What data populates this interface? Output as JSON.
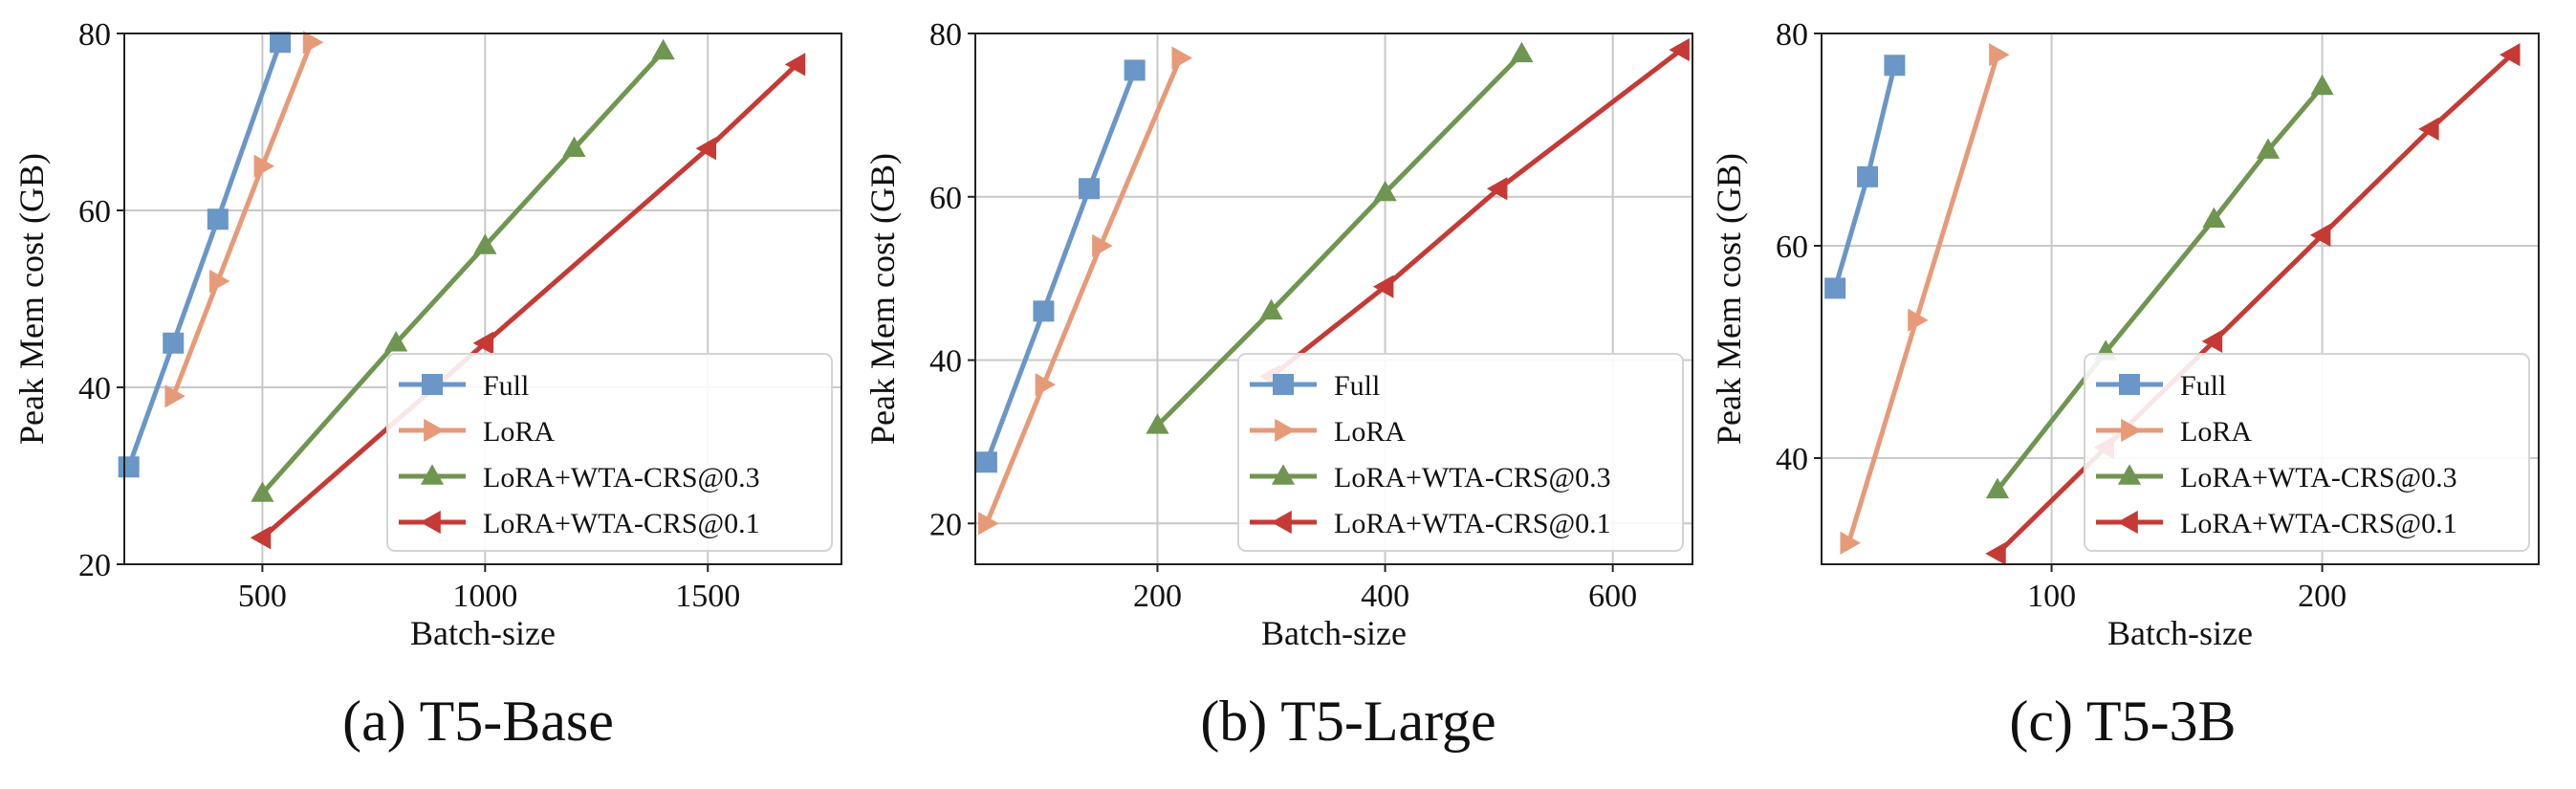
{
  "colors": {
    "full": "#6a96c8",
    "lora": "#e79a78",
    "wta03": "#6f9650",
    "wta01": "#c53a35",
    "grid": "#c8c8c8",
    "axis": "#222222"
  },
  "panels": [
    {
      "caption": "(a) T5-Base"
    },
    {
      "caption": "(b) T5-Large"
    },
    {
      "caption": "(c) T5-3B"
    }
  ],
  "chart_data": [
    {
      "type": "line",
      "title": "(a) T5-Base",
      "xlabel": "Batch-size",
      "ylabel": "Peak Mem cost (GB)",
      "xlim": [
        190,
        1800
      ],
      "ylim": [
        20,
        80
      ],
      "xticks": [
        500,
        1000,
        1500
      ],
      "yticks": [
        20,
        40,
        60,
        80
      ],
      "grid": true,
      "legend_position": "bottom-right",
      "series": [
        {
          "name": "Full",
          "marker": "square",
          "color_key": "full",
          "x": [
            200,
            300,
            400,
            540
          ],
          "y": [
            31,
            45,
            59,
            79
          ]
        },
        {
          "name": "LoRA",
          "marker": "triangle-right",
          "color_key": "lora",
          "x": [
            300,
            400,
            500,
            610
          ],
          "y": [
            39,
            52,
            65,
            79
          ]
        },
        {
          "name": "LoRA+WTA-CRS@0.3",
          "marker": "triangle-up",
          "color_key": "wta03",
          "x": [
            500,
            800,
            1000,
            1200,
            1400
          ],
          "y": [
            28,
            45,
            56,
            67,
            78
          ]
        },
        {
          "name": "LoRA+WTA-CRS@0.1",
          "marker": "triangle-left",
          "color_key": "wta01",
          "x": [
            500,
            1000,
            1500,
            1700
          ],
          "y": [
            23,
            45,
            67,
            76.5
          ]
        }
      ]
    },
    {
      "type": "line",
      "title": "(b) T5-Large",
      "xlabel": "Batch-size",
      "ylabel": "Peak Mem cost (GB)",
      "xlim": [
        40,
        670
      ],
      "ylim": [
        15,
        80
      ],
      "xticks": [
        200,
        400,
        600
      ],
      "yticks": [
        20,
        40,
        60,
        80
      ],
      "grid": true,
      "legend_position": "bottom-right",
      "series": [
        {
          "name": "Full",
          "marker": "square",
          "color_key": "full",
          "x": [
            50,
            100,
            140,
            180
          ],
          "y": [
            27.5,
            46,
            61,
            75.5
          ]
        },
        {
          "name": "LoRA",
          "marker": "triangle-right",
          "color_key": "lora",
          "x": [
            50,
            100,
            150,
            220
          ],
          "y": [
            20,
            37,
            54,
            77
          ]
        },
        {
          "name": "LoRA+WTA-CRS@0.3",
          "marker": "triangle-up",
          "color_key": "wta03",
          "x": [
            200,
            300,
            400,
            520
          ],
          "y": [
            32,
            46,
            60.5,
            77.5
          ]
        },
        {
          "name": "LoRA+WTA-CRS@0.1",
          "marker": "triangle-left",
          "color_key": "wta01",
          "x": [
            300,
            400,
            500,
            660
          ],
          "y": [
            38,
            49,
            61,
            78
          ]
        }
      ]
    },
    {
      "type": "line",
      "title": "(c) T5-3B",
      "xlabel": "Batch-size",
      "ylabel": "Peak Mem cost (GB)",
      "xlim": [
        15,
        280
      ],
      "ylim": [
        30,
        80
      ],
      "xticks": [
        100,
        200
      ],
      "yticks": [
        40,
        60,
        80
      ],
      "grid": true,
      "legend_position": "bottom-right",
      "series": [
        {
          "name": "Full",
          "marker": "square",
          "color_key": "full",
          "x": [
            20,
            32,
            42
          ],
          "y": [
            56,
            66.5,
            77
          ]
        },
        {
          "name": "LoRA",
          "marker": "triangle-right",
          "color_key": "lora",
          "x": [
            25,
            50,
            80
          ],
          "y": [
            32,
            53,
            78
          ]
        },
        {
          "name": "LoRA+WTA-CRS@0.3",
          "marker": "triangle-up",
          "color_key": "wta03",
          "x": [
            80,
            120,
            160,
            180,
            200
          ],
          "y": [
            37,
            50,
            62.5,
            69,
            75
          ]
        },
        {
          "name": "LoRA+WTA-CRS@0.1",
          "marker": "triangle-left",
          "color_key": "wta01",
          "x": [
            80,
            120,
            160,
            200,
            240,
            270
          ],
          "y": [
            31,
            41,
            51,
            61,
            71,
            78
          ]
        }
      ]
    }
  ]
}
